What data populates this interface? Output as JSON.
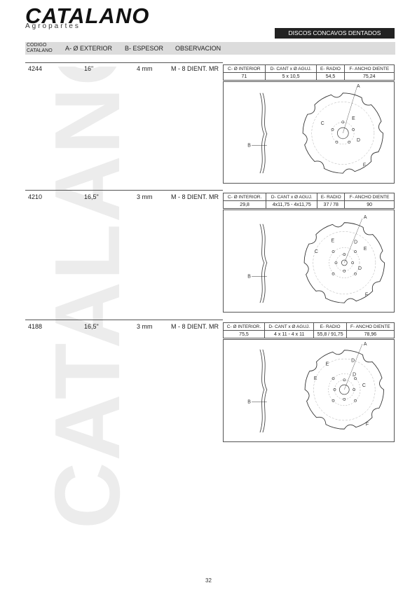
{
  "brand": {
    "name": "CATALANO",
    "tagline": "Agropartes"
  },
  "section_title": "DISCOS CONCAVOS DENTADOS",
  "columns": {
    "code_line1": "CODIGO",
    "code_line2": "CATALANO",
    "a": "A- Ø EXTERIOR",
    "b": "B- ESPESOR",
    "obs": "OBSERVACION"
  },
  "spec_headers": [
    "C- Ø INTERIOR.",
    "D- CANT x Ø AGUJ.",
    "E- RADIO",
    "F- ANCHO DIENTE"
  ],
  "spec_headers_first": [
    "C- Ø INTERIOR",
    "D- CANT x Ø AGUJ.",
    "E- RADIO",
    "F- ANCHO DIENTE"
  ],
  "products": [
    {
      "code": "4244",
      "diameter": "16\"",
      "thickness": "4 mm",
      "observation": "M - 8 DIENT. MR",
      "specs": [
        "71",
        "5 x 10,5",
        "54,5",
        "75,24"
      ]
    },
    {
      "code": "4210",
      "diameter": "16,5\"",
      "thickness": "3 mm",
      "observation": "M - 8 DIENT. MR",
      "specs": [
        "29,8",
        "4x11,75 - 4x11,75",
        "37 / 78",
        "90"
      ]
    },
    {
      "code": "4188",
      "diameter": "16,5\"",
      "thickness": "3 mm",
      "observation": "M - 8 DIENT. MR",
      "specs": [
        "75,5",
        "4 x 11 - 4 x 11",
        "55,8 / 91,75",
        "78,96"
      ]
    }
  ],
  "labels": {
    "a": "A",
    "b": "B",
    "c": "C",
    "d": "D",
    "e": "E",
    "f": "F"
  },
  "page_number": "32"
}
